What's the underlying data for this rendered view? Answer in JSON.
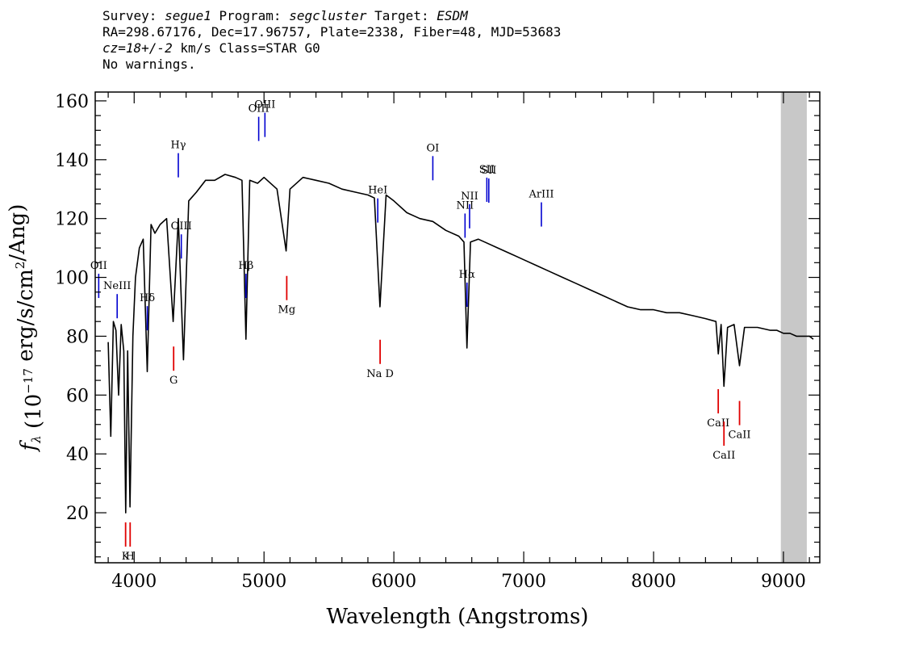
{
  "header": {
    "line1": {
      "survey_label": "Survey: ",
      "survey_value": "segue1",
      "program_label": " Program: ",
      "program_value": "segcluster",
      "target_label": " Target: ",
      "target_value": "ESDM"
    },
    "line2": "RA=298.67176, Dec=17.96757, Plate=2338, Fiber=48, MJD=53683",
    "line3": {
      "cz_value": "cz=18+/-2",
      "cz_rest": " km/s Class=STAR G0"
    },
    "line4": "No warnings."
  },
  "chart_data": {
    "type": "line",
    "xlabel": "Wavelength (Angstroms)",
    "ylabel": "f_λ (10^-17 erg/s/cm^2/Ang)",
    "xlim": [
      3700,
      9280
    ],
    "ylim": [
      3,
      163
    ],
    "x_ticks": [
      4000,
      5000,
      6000,
      7000,
      8000,
      9000
    ],
    "y_ticks": [
      20,
      40,
      60,
      80,
      100,
      120,
      140,
      160
    ],
    "shaded_band": {
      "x": [
        8980,
        9180
      ],
      "color": "#c8c8c8"
    },
    "series": [
      {
        "color": "#000000",
        "x": [
          3800,
          3820,
          3840,
          3860,
          3880,
          3900,
          3920,
          3935,
          3950,
          3968,
          3990,
          4010,
          4040,
          4070,
          4101,
          4130,
          4160,
          4200,
          4250,
          4300,
          4340,
          4380,
          4420,
          4480,
          4550,
          4620,
          4700,
          4780,
          4830,
          4861,
          4890,
          4950,
          5000,
          5100,
          5170,
          5200,
          5300,
          5400,
          5500,
          5600,
          5700,
          5800,
          5850,
          5893,
          5940,
          6000,
          6100,
          6200,
          6300,
          6400,
          6500,
          6540,
          6563,
          6590,
          6650,
          6700,
          6800,
          6900,
          7000,
          7100,
          7200,
          7300,
          7400,
          7500,
          7600,
          7700,
          7800,
          7900,
          8000,
          8100,
          8200,
          8300,
          8400,
          8480,
          8498,
          8520,
          8542,
          8570,
          8620,
          8662,
          8700,
          8800,
          8900,
          8950,
          9000,
          9050,
          9100,
          9150,
          9200,
          9230
        ],
        "y": [
          78,
          46,
          85,
          82,
          60,
          84,
          75,
          20,
          75,
          22,
          80,
          100,
          110,
          113,
          68,
          118,
          115,
          118,
          120,
          85,
          120,
          72,
          126,
          129,
          133,
          133,
          135,
          134,
          133,
          79,
          133,
          132,
          134,
          130,
          109,
          130,
          134,
          133,
          132,
          130,
          129,
          128,
          127,
          90,
          128,
          126,
          122,
          120,
          119,
          116,
          114,
          112,
          76,
          112,
          113,
          112,
          110,
          108,
          106,
          104,
          102,
          100,
          98,
          96,
          94,
          92,
          90,
          89,
          89,
          88,
          88,
          87,
          86,
          85,
          74,
          84,
          63,
          83,
          84,
          70,
          83,
          83,
          82,
          82,
          81,
          81,
          80,
          80,
          80,
          79
        ]
      }
    ],
    "emission_lines": [
      {
        "name": "OII",
        "x": 3727
      },
      {
        "name": "NeIII",
        "x": 3869
      },
      {
        "name": "Hδ",
        "x": 4101
      },
      {
        "name": "Hγ",
        "x": 4340
      },
      {
        "name": "OIII",
        "x": 4363
      },
      {
        "name": "Hβ",
        "x": 4861
      },
      {
        "name": "OIII",
        "x": 4959
      },
      {
        "name": "OIII",
        "x": 5007
      },
      {
        "name": "HeI",
        "x": 5876
      },
      {
        "name": "OI",
        "x": 6300
      },
      {
        "name": "NII",
        "x": 6548
      },
      {
        "name": "Hα",
        "x": 6563
      },
      {
        "name": "NII",
        "x": 6583
      },
      {
        "name": "SII",
        "x": 6716
      },
      {
        "name": "SII",
        "x": 6731
      },
      {
        "name": "ArIII",
        "x": 7136
      }
    ],
    "absorption_lines": [
      {
        "name": "K",
        "x": 3934
      },
      {
        "name": "H",
        "x": 3969
      },
      {
        "name": "G",
        "x": 4304
      },
      {
        "name": "Mg",
        "x": 5175
      },
      {
        "name": "Na D",
        "x": 5894
      },
      {
        "name": "CaII",
        "x": 8498
      },
      {
        "name": "CaII",
        "x": 8542
      },
      {
        "name": "CaII",
        "x": 8662
      }
    ]
  }
}
